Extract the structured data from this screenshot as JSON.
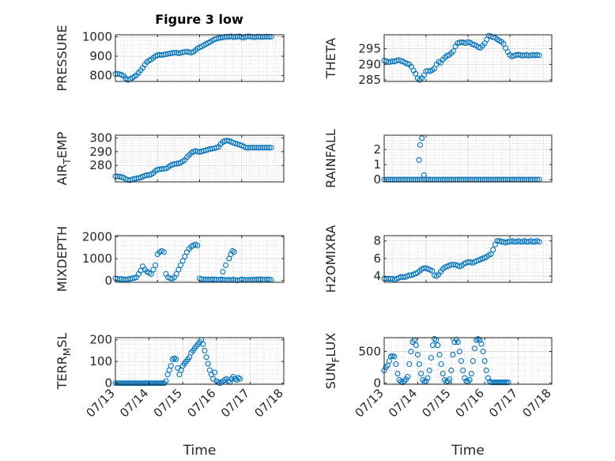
{
  "figure": {
    "title": "Figure 3 low",
    "marker_color": "#0072bd"
  },
  "chart_data": [
    {
      "type": "scatter",
      "title": "Figure 3 low",
      "ylabel": "PRESSURE",
      "xlabel": "",
      "ylim": [
        770,
        1010
      ],
      "yticks": [
        800,
        900,
        1000
      ],
      "xlim": [
        0,
        4
      ],
      "xticks": [],
      "grid": true,
      "x": [
        0.0,
        0.05,
        0.1,
        0.15,
        0.2,
        0.25,
        0.3,
        0.35,
        0.4,
        0.45,
        0.5,
        0.55,
        0.6,
        0.65,
        0.7,
        0.75,
        0.8,
        0.85,
        0.9,
        0.95,
        1.0,
        1.05,
        1.1,
        1.15,
        1.2,
        1.25,
        1.3,
        1.35,
        1.4,
        1.45,
        1.5,
        1.55,
        1.6,
        1.65,
        1.7,
        1.75,
        1.8,
        1.85,
        1.9,
        1.95,
        2.0,
        2.05,
        2.1,
        2.15,
        2.2,
        2.25,
        2.3,
        2.35,
        2.4,
        2.45,
        2.5,
        2.55,
        2.6,
        2.65,
        2.7,
        2.75,
        2.8,
        2.85,
        2.9,
        2.95,
        3.0,
        3.05,
        3.1,
        3.15,
        3.2,
        3.25,
        3.3,
        3.35,
        3.4,
        3.45,
        3.5,
        3.55,
        3.6,
        3.65,
        3.7
      ],
      "y": [
        808,
        810,
        807,
        804,
        798,
        785,
        778,
        782,
        788,
        795,
        802,
        815,
        828,
        840,
        856,
        870,
        878,
        883,
        892,
        900,
        905,
        907,
        906,
        908,
        910,
        912,
        914,
        916,
        918,
        918,
        915,
        917,
        920,
        922,
        924,
        921,
        918,
        922,
        930,
        940,
        945,
        950,
        956,
        962,
        968,
        973,
        980,
        986,
        990,
        993,
        995,
        997,
        999,
        1000,
        1000,
        1002,
        998,
        1000,
        1001,
        1002,
        998,
        996,
        1000,
        1002,
        1001,
        1000,
        998,
        1000,
        1001,
        1000,
        999,
        1000,
        1001,
        1000,
        1000
      ]
    },
    {
      "type": "scatter",
      "ylabel": "THETA",
      "xlabel": "",
      "ylim": [
        284.5,
        299.5
      ],
      "yticks": [
        285,
        290,
        295
      ],
      "xlim": [
        0,
        4
      ],
      "xticks": [],
      "grid": true,
      "x": [
        0.0,
        0.05,
        0.1,
        0.15,
        0.2,
        0.25,
        0.3,
        0.35,
        0.4,
        0.45,
        0.5,
        0.55,
        0.6,
        0.65,
        0.7,
        0.75,
        0.8,
        0.85,
        0.9,
        0.95,
        1.0,
        1.05,
        1.1,
        1.15,
        1.2,
        1.25,
        1.3,
        1.35,
        1.4,
        1.45,
        1.5,
        1.55,
        1.6,
        1.65,
        1.7,
        1.75,
        1.8,
        1.85,
        1.9,
        1.95,
        2.0,
        2.05,
        2.1,
        2.15,
        2.2,
        2.25,
        2.3,
        2.35,
        2.4,
        2.45,
        2.5,
        2.55,
        2.6,
        2.65,
        2.7,
        2.75,
        2.8,
        2.85,
        2.9,
        2.95,
        3.0,
        3.05,
        3.1,
        3.15,
        3.2,
        3.25,
        3.3,
        3.35,
        3.4,
        3.45,
        3.5,
        3.55,
        3.6,
        3.65,
        3.7
      ],
      "y": [
        291.2,
        291.0,
        290.7,
        290.8,
        291.0,
        290.9,
        291.2,
        291.4,
        291.1,
        290.9,
        290.5,
        290.2,
        290.0,
        289.2,
        288.0,
        287.0,
        285.5,
        285.0,
        285.6,
        286.5,
        287.8,
        287.9,
        287.8,
        288.2,
        288.7,
        290.0,
        290.8,
        290.5,
        291.5,
        292.2,
        292.8,
        293.0,
        293.6,
        294.2,
        295.8,
        296.8,
        297.0,
        297.1,
        297.0,
        296.8,
        297.2,
        297.0,
        296.5,
        296.3,
        296.0,
        295.5,
        295.3,
        296.0,
        296.8,
        298.0,
        299.2,
        299.0,
        298.7,
        298.5,
        298.0,
        297.6,
        297.2,
        296.6,
        295.2,
        294.0,
        293.0,
        292.5,
        292.8,
        293.0,
        293.1,
        293.0,
        292.8,
        292.9,
        293.0,
        292.8,
        292.9,
        293.0,
        292.9,
        293.0,
        292.9
      ]
    },
    {
      "type": "scatter",
      "ylabel": "AIR_TEMP",
      "xlabel": "",
      "ylim": [
        268,
        302
      ],
      "yticks": [
        280,
        290,
        300
      ],
      "xlim": [
        0,
        4
      ],
      "xticks": [],
      "grid": true,
      "x": [
        0.0,
        0.05,
        0.1,
        0.15,
        0.2,
        0.25,
        0.3,
        0.35,
        0.4,
        0.45,
        0.5,
        0.55,
        0.6,
        0.65,
        0.7,
        0.75,
        0.8,
        0.85,
        0.9,
        0.95,
        1.0,
        1.05,
        1.1,
        1.15,
        1.2,
        1.25,
        1.3,
        1.35,
        1.4,
        1.45,
        1.5,
        1.55,
        1.6,
        1.65,
        1.7,
        1.75,
        1.8,
        1.85,
        1.9,
        1.95,
        2.0,
        2.05,
        2.1,
        2.15,
        2.2,
        2.25,
        2.3,
        2.35,
        2.4,
        2.45,
        2.5,
        2.55,
        2.6,
        2.65,
        2.7,
        2.75,
        2.8,
        2.85,
        2.9,
        2.95,
        3.0,
        3.05,
        3.1,
        3.15,
        3.2,
        3.25,
        3.3,
        3.35,
        3.4,
        3.45,
        3.5,
        3.55,
        3.6,
        3.65,
        3.7
      ],
      "y": [
        272.0,
        272.0,
        271.8,
        271.5,
        271.0,
        270.0,
        269.4,
        269.2,
        269.8,
        270.2,
        270.5,
        270.8,
        271.2,
        271.8,
        272.5,
        273.0,
        273.0,
        273.5,
        274.5,
        276.0,
        276.8,
        277.2,
        277.3,
        277.5,
        277.8,
        278.5,
        279.8,
        280.5,
        281.0,
        281.2,
        281.5,
        282.0,
        283.0,
        284.0,
        286.0,
        287.5,
        289.0,
        290.0,
        290.5,
        290.0,
        289.8,
        290.2,
        290.6,
        291.0,
        291.5,
        292.0,
        292.2,
        292.5,
        293.0,
        293.5,
        295.5,
        297.0,
        297.8,
        298.0,
        297.8,
        297.2,
        296.5,
        296.0,
        295.5,
        295.0,
        294.5,
        293.8,
        293.0,
        292.8,
        293.0,
        293.0,
        292.9,
        293.0,
        292.9,
        293.0,
        292.9,
        293.0,
        293.0,
        292.9,
        293.0
      ]
    },
    {
      "type": "scatter",
      "ylabel": "RAINFALL",
      "xlabel": "",
      "ylim": [
        -0.15,
        2.95
      ],
      "yticks": [
        0,
        1,
        2
      ],
      "xlim": [
        0,
        4
      ],
      "xticks": [],
      "grid": true,
      "x": [
        0.0,
        0.05,
        0.1,
        0.15,
        0.2,
        0.25,
        0.3,
        0.35,
        0.4,
        0.45,
        0.5,
        0.55,
        0.6,
        0.65,
        0.7,
        0.75,
        0.8,
        0.85,
        0.9,
        0.95,
        1.0,
        1.05,
        1.1,
        1.15,
        1.2,
        1.25,
        1.3,
        1.35,
        1.4,
        1.45,
        1.5,
        1.55,
        1.6,
        1.65,
        1.7,
        1.75,
        1.8,
        1.85,
        1.9,
        1.95,
        2.0,
        2.05,
        2.1,
        2.15,
        2.2,
        2.25,
        2.3,
        2.35,
        2.4,
        2.45,
        2.5,
        2.55,
        2.6,
        2.65,
        2.7,
        2.75,
        2.8,
        2.85,
        2.9,
        2.95,
        3.0,
        3.05,
        3.1,
        3.15,
        3.2,
        3.25,
        3.3,
        3.35,
        3.4,
        3.45,
        3.5,
        3.55,
        3.6,
        3.65,
        3.7,
        0.83,
        0.86,
        0.9,
        0.95
      ],
      "y": [
        0,
        0,
        0,
        0,
        0,
        0,
        0,
        0,
        0,
        0,
        0,
        0,
        0,
        0,
        0,
        0,
        0,
        0,
        0,
        0,
        0,
        0,
        0,
        0,
        0,
        0,
        0,
        0,
        0,
        0,
        0,
        0,
        0,
        0,
        0,
        0,
        0,
        0,
        0,
        0,
        0,
        0,
        0,
        0,
        0,
        0,
        0,
        0,
        0,
        0,
        0,
        0,
        0,
        0,
        0,
        0,
        0,
        0,
        0,
        0,
        0,
        0,
        0,
        0,
        0,
        0,
        0,
        0,
        0,
        0,
        0,
        0,
        0,
        0,
        0,
        1.3,
        2.3,
        2.75,
        0.3
      ]
    },
    {
      "type": "scatter",
      "ylabel": "MIXDEPTH",
      "xlabel": "",
      "ylim": [
        -80,
        2050
      ],
      "yticks": [
        0,
        1000,
        2000
      ],
      "xlim": [
        0,
        4
      ],
      "xticks": [],
      "grid": true,
      "x": [
        0.0,
        0.05,
        0.1,
        0.15,
        0.2,
        0.25,
        0.3,
        0.35,
        0.4,
        0.45,
        0.5,
        0.55,
        0.6,
        0.65,
        0.7,
        0.75,
        0.8,
        0.85,
        0.9,
        0.95,
        1.0,
        1.05,
        1.1,
        1.15,
        1.2,
        1.25,
        1.3,
        1.35,
        1.4,
        1.45,
        1.5,
        1.55,
        1.6,
        1.65,
        1.7,
        1.75,
        1.8,
        1.85,
        1.9,
        1.95,
        2.0,
        2.05,
        2.1,
        2.15,
        2.2,
        2.25,
        2.3,
        2.35,
        2.4,
        2.45,
        2.5,
        2.55,
        2.6,
        2.65,
        2.7,
        2.75,
        2.8,
        2.85,
        2.9,
        2.95,
        3.0,
        3.05,
        3.1,
        3.15,
        3.2,
        3.25,
        3.3,
        3.35,
        3.4,
        3.45,
        3.5,
        3.55,
        3.6,
        3.65,
        3.7,
        2.55,
        2.62,
        2.7,
        2.74,
        2.78,
        2.82
      ],
      "y": [
        100,
        80,
        60,
        70,
        50,
        40,
        60,
        80,
        100,
        120,
        150,
        300,
        450,
        650,
        500,
        400,
        350,
        300,
        500,
        700,
        1200,
        1300,
        1350,
        1300,
        300,
        150,
        100,
        80,
        150,
        300,
        500,
        700,
        900,
        1100,
        1300,
        1450,
        1550,
        1600,
        1650,
        1600,
        100,
        60,
        50,
        40,
        50,
        40,
        60,
        50,
        40,
        30,
        50,
        40,
        30,
        20,
        30,
        20,
        40,
        20,
        10,
        20,
        50,
        30,
        20,
        30,
        20,
        40,
        30,
        50,
        40,
        60,
        40,
        30,
        50,
        40,
        30,
        400,
        700,
        1000,
        1200,
        1350,
        1300
      ]
    },
    {
      "type": "scatter",
      "ylabel": "H2OMIXRA",
      "xlabel": "",
      "ylim": [
        3.3,
        8.6
      ],
      "yticks": [
        4,
        6,
        8
      ],
      "xlim": [
        0,
        4
      ],
      "xticks": [],
      "grid": true,
      "x": [
        0.0,
        0.05,
        0.1,
        0.15,
        0.2,
        0.25,
        0.3,
        0.35,
        0.4,
        0.45,
        0.5,
        0.55,
        0.6,
        0.65,
        0.7,
        0.75,
        0.8,
        0.85,
        0.9,
        0.95,
        1.0,
        1.05,
        1.1,
        1.15,
        1.2,
        1.25,
        1.3,
        1.35,
        1.4,
        1.45,
        1.5,
        1.55,
        1.6,
        1.65,
        1.7,
        1.75,
        1.8,
        1.85,
        1.9,
        1.95,
        2.0,
        2.05,
        2.1,
        2.15,
        2.2,
        2.25,
        2.3,
        2.35,
        2.4,
        2.45,
        2.5,
        2.55,
        2.6,
        2.65,
        2.7,
        2.75,
        2.8,
        2.85,
        2.9,
        2.95,
        3.0,
        3.05,
        3.1,
        3.15,
        3.2,
        3.25,
        3.3,
        3.35,
        3.4,
        3.45,
        3.5,
        3.55,
        3.6,
        3.65,
        3.7
      ],
      "y": [
        3.7,
        3.7,
        3.7,
        3.7,
        3.7,
        3.6,
        3.7,
        3.8,
        3.9,
        3.9,
        3.9,
        4.0,
        4.1,
        4.1,
        4.2,
        4.3,
        4.4,
        4.6,
        4.8,
        4.9,
        4.9,
        4.8,
        4.7,
        4.6,
        4.1,
        4.0,
        4.2,
        4.5,
        4.8,
        5.0,
        5.1,
        5.2,
        5.3,
        5.3,
        5.3,
        5.2,
        5.1,
        5.2,
        5.4,
        5.5,
        5.6,
        5.6,
        5.5,
        5.6,
        5.7,
        5.8,
        5.9,
        6.0,
        6.1,
        6.2,
        6.4,
        6.5,
        7.0,
        7.6,
        8.0,
        8.0,
        7.9,
        7.9,
        7.8,
        7.9,
        7.9,
        8.0,
        7.9,
        7.9,
        8.0,
        7.9,
        7.9,
        8.0,
        7.9,
        7.9,
        8.0,
        7.9,
        7.9,
        8.0,
        7.9
      ]
    },
    {
      "type": "scatter",
      "ylabel": "TERR_MSL",
      "xlabel": "Time",
      "ylim": [
        -5,
        210
      ],
      "yticks": [
        0,
        100,
        200
      ],
      "xlim": [
        0,
        5
      ],
      "xticks": [
        "07/13",
        "07/14",
        "07/15",
        "07/16",
        "07/17",
        "07/18"
      ],
      "grid": true,
      "x": [
        0.0,
        0.05,
        0.1,
        0.15,
        0.2,
        0.25,
        0.3,
        0.35,
        0.4,
        0.45,
        0.5,
        0.55,
        0.6,
        0.65,
        0.7,
        0.75,
        0.8,
        0.85,
        0.9,
        0.95,
        1.0,
        1.05,
        1.1,
        1.15,
        1.2,
        1.25,
        1.3,
        1.35,
        1.4,
        1.45,
        1.5,
        1.55,
        1.6,
        1.65,
        1.7,
        1.75,
        1.8,
        1.85,
        1.9,
        1.95,
        2.0,
        2.05,
        2.1,
        2.15,
        2.2,
        2.25,
        2.3,
        2.35,
        2.4,
        2.45,
        2.5,
        2.55,
        2.6,
        2.65,
        2.7,
        2.75,
        2.8,
        2.85,
        2.9,
        2.95,
        3.0,
        3.05,
        3.1,
        3.15,
        3.2,
        3.25,
        3.3,
        3.35,
        3.4,
        3.45,
        3.5,
        3.55,
        3.6,
        3.65,
        3.7
      ],
      "y": [
        0,
        0,
        0,
        0,
        0,
        0,
        0,
        0,
        0,
        0,
        0,
        0,
        0,
        0,
        0,
        0,
        0,
        0,
        0,
        0,
        0,
        0,
        0,
        0,
        0,
        0,
        0,
        0,
        0,
        0,
        10,
        40,
        60,
        80,
        110,
        115,
        110,
        70,
        40,
        60,
        80,
        90,
        100,
        110,
        120,
        140,
        150,
        160,
        170,
        180,
        190,
        200,
        180,
        150,
        120,
        90,
        60,
        40,
        20,
        50,
        10,
        5,
        0,
        5,
        10,
        15,
        20,
        10,
        5,
        20,
        30,
        20,
        15,
        25,
        20
      ]
    },
    {
      "type": "scatter",
      "ylabel": "SUN_FLUX",
      "xlabel": "Time",
      "ylim": [
        -20,
        720
      ],
      "yticks": [
        0,
        500
      ],
      "xlim": [
        0,
        5
      ],
      "xticks": [
        "07/13",
        "07/14",
        "07/15",
        "07/16",
        "07/17",
        "07/18"
      ],
      "grid": true,
      "x": [
        0.0,
        0.05,
        0.1,
        0.15,
        0.2,
        0.25,
        0.3,
        0.35,
        0.4,
        0.45,
        0.5,
        0.55,
        0.6,
        0.65,
        0.7,
        0.75,
        0.8,
        0.85,
        0.9,
        0.95,
        1.0,
        1.05,
        1.1,
        1.15,
        1.2,
        1.25,
        1.3,
        1.35,
        1.4,
        1.45,
        1.5,
        1.55,
        1.6,
        1.65,
        1.7,
        1.75,
        1.8,
        1.85,
        1.9,
        1.95,
        2.0,
        2.05,
        2.1,
        2.15,
        2.2,
        2.25,
        2.3,
        2.35,
        2.4,
        2.45,
        2.5,
        2.55,
        2.6,
        2.65,
        2.7,
        2.75,
        2.8,
        2.85,
        2.9,
        2.95,
        3.0,
        3.05,
        3.1,
        3.15,
        3.2,
        3.25,
        3.3,
        3.35,
        3.4,
        3.45,
        3.5,
        3.55,
        3.6,
        3.65,
        3.7
      ],
      "y": [
        200,
        250,
        280,
        350,
        420,
        430,
        420,
        300,
        150,
        50,
        20,
        10,
        30,
        60,
        100,
        300,
        500,
        650,
        680,
        600,
        450,
        300,
        150,
        50,
        20,
        30,
        80,
        200,
        400,
        600,
        700,
        680,
        600,
        450,
        300,
        150,
        50,
        20,
        30,
        60,
        200,
        450,
        650,
        690,
        650,
        500,
        350,
        200,
        80,
        30,
        20,
        50,
        150,
        350,
        550,
        680,
        700,
        680,
        620,
        500,
        350,
        200,
        80,
        20,
        10,
        10,
        10,
        10,
        10,
        10,
        10,
        10,
        10,
        10,
        10
      ]
    }
  ]
}
